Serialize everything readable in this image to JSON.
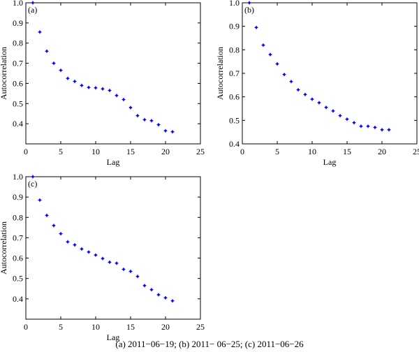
{
  "caption": "(a) 2011−06−19; (b) 2011− 06−25; (c) 2011−06−26",
  "chart_data": [
    {
      "type": "scatter",
      "panel_label": "(a)",
      "xlabel": "Lag",
      "ylabel": "Autocorrelation",
      "xlim": [
        0,
        25
      ],
      "ylim": [
        0.3,
        1.0
      ],
      "xticks": [
        0,
        5,
        10,
        15,
        20,
        25
      ],
      "yticks": [
        0.4,
        0.5,
        0.6,
        0.7,
        0.8,
        0.9,
        1.0
      ],
      "grid": false,
      "marker_color": "#0000ff",
      "x": [
        1,
        2,
        3,
        4,
        5,
        6,
        7,
        8,
        9,
        10,
        11,
        12,
        13,
        14,
        15,
        16,
        17,
        18,
        19,
        20,
        21
      ],
      "y": [
        1.0,
        0.855,
        0.76,
        0.7,
        0.665,
        0.625,
        0.61,
        0.59,
        0.58,
        0.578,
        0.573,
        0.565,
        0.54,
        0.52,
        0.48,
        0.44,
        0.42,
        0.415,
        0.395,
        0.365,
        0.36
      ]
    },
    {
      "type": "scatter",
      "panel_label": "(b)",
      "xlabel": "Lag",
      "ylabel": "Autocorrelation",
      "xlim": [
        0,
        25
      ],
      "ylim": [
        0.4,
        1.0
      ],
      "xticks": [
        0,
        5,
        10,
        15,
        20,
        25
      ],
      "yticks": [
        0.4,
        0.5,
        0.6,
        0.7,
        0.8,
        0.9,
        1.0
      ],
      "grid": false,
      "marker_color": "#0000ff",
      "x": [
        1,
        2,
        3,
        4,
        5,
        6,
        7,
        8,
        9,
        10,
        11,
        12,
        13,
        14,
        15,
        16,
        17,
        18,
        19,
        20,
        21
      ],
      "y": [
        1.0,
        0.895,
        0.82,
        0.78,
        0.74,
        0.695,
        0.665,
        0.63,
        0.61,
        0.59,
        0.575,
        0.555,
        0.54,
        0.52,
        0.505,
        0.49,
        0.475,
        0.475,
        0.47,
        0.46,
        0.46
      ]
    },
    {
      "type": "scatter",
      "panel_label": "(c)",
      "xlabel": "Lag",
      "ylabel": "Autocorrelation",
      "xlim": [
        0,
        25
      ],
      "ylim": [
        0.3,
        1.0
      ],
      "xticks": [
        0,
        5,
        10,
        15,
        20,
        25
      ],
      "yticks": [
        0.4,
        0.5,
        0.6,
        0.7,
        0.8,
        0.9,
        1.0
      ],
      "grid": false,
      "marker_color": "#0000ff",
      "x": [
        1,
        2,
        3,
        4,
        5,
        6,
        7,
        8,
        9,
        10,
        11,
        12,
        13,
        14,
        15,
        16,
        17,
        18,
        19,
        20,
        21
      ],
      "y": [
        1.0,
        0.885,
        0.81,
        0.76,
        0.72,
        0.68,
        0.665,
        0.645,
        0.63,
        0.615,
        0.598,
        0.58,
        0.575,
        0.545,
        0.535,
        0.51,
        0.465,
        0.445,
        0.42,
        0.405,
        0.39
      ]
    }
  ]
}
